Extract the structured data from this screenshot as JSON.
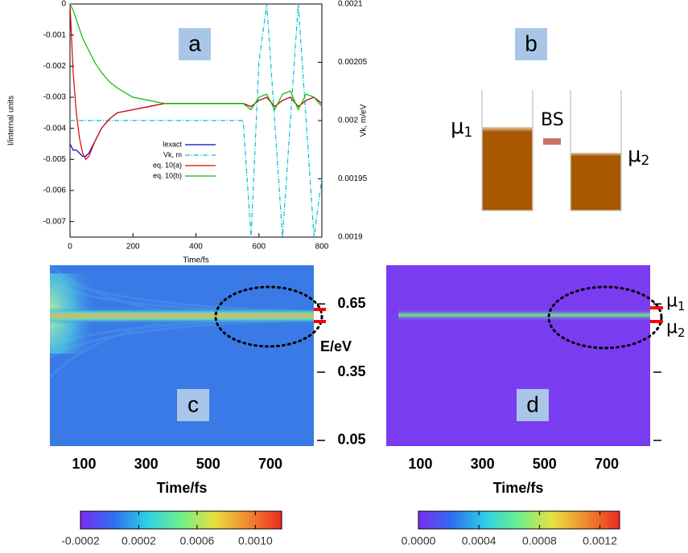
{
  "chart_data": [
    {
      "type": "line",
      "label": "a",
      "x": [
        0,
        10,
        20,
        30,
        40,
        50,
        60,
        80,
        100,
        125,
        150,
        200,
        250,
        300,
        400,
        500,
        550,
        575,
        600,
        625,
        650,
        675,
        700,
        725,
        750,
        775,
        800
      ],
      "xlim": [
        0,
        800
      ],
      "xticks": [
        0,
        200,
        400,
        600,
        800
      ],
      "ylim": [
        -0.0075,
        0
      ],
      "yticks": [
        0,
        -0.001,
        -0.002,
        -0.003,
        -0.004,
        -0.005,
        -0.006,
        -0.007
      ],
      "y2lim": [
        0.0019,
        0.0021
      ],
      "y2ticks": [
        0.0019,
        0.00195,
        0.002,
        0.00205,
        0.0021
      ],
      "x_label": "Time/fs",
      "y_label": "I/internal units",
      "y2_label": "Vk, m/eV",
      "series": [
        {
          "name": "Iexact",
          "color": "#0000c8",
          "dash": false,
          "values": [
            -0.0045,
            -0.0047,
            -0.0047,
            -0.0048,
            -0.0049,
            -0.0049,
            -0.0048,
            -0.0044,
            -0.004,
            -0.0037,
            -0.0035,
            -0.0034,
            -0.0033,
            -0.0032,
            -0.0032,
            -0.0032,
            -0.0032,
            -0.0033,
            -0.0031,
            -0.003,
            -0.0033,
            -0.0031,
            -0.003,
            -0.0033,
            -0.0031,
            -0.003,
            -0.0032
          ]
        },
        {
          "name": "Vk, m",
          "color": "#00c0d0",
          "dash": true,
          "axis": "y2",
          "values": [
            0.002,
            0.002,
            0.002,
            0.002,
            0.002,
            0.002,
            0.002,
            0.002,
            0.002,
            0.002,
            0.002,
            0.002,
            0.002,
            0.002,
            0.002,
            0.002,
            0.002,
            0.0019,
            0.00205,
            0.0021,
            0.002,
            0.0019,
            0.002,
            0.0021,
            0.002,
            0.0019,
            0.00195
          ]
        },
        {
          "name": "eq. 10(a)",
          "color": "#e00000",
          "dash": false,
          "values": [
            0,
            -0.0022,
            -0.0035,
            -0.0043,
            -0.0048,
            -0.005,
            -0.0049,
            -0.0044,
            -0.004,
            -0.0037,
            -0.0035,
            -0.0034,
            -0.0033,
            -0.0032,
            -0.0032,
            -0.0032,
            -0.0032,
            -0.0033,
            -0.0031,
            -0.003,
            -0.0033,
            -0.0031,
            -0.003,
            -0.0033,
            -0.0031,
            -0.003,
            -0.0032
          ]
        },
        {
          "name": "eq. 10(b)",
          "color": "#00c000",
          "dash": false,
          "values": [
            0,
            -0.0002,
            -0.0005,
            -0.0008,
            -0.0011,
            -0.0013,
            -0.0015,
            -0.0019,
            -0.0022,
            -0.0025,
            -0.0027,
            -0.003,
            -0.0031,
            -0.0032,
            -0.0032,
            -0.0032,
            -0.0032,
            -0.0034,
            -0.003,
            -0.0029,
            -0.0034,
            -0.0029,
            -0.0028,
            -0.0034,
            -0.0029,
            -0.003,
            -0.0033
          ]
        }
      ]
    },
    {
      "type": "heatmap",
      "label": "c",
      "xlim": [
        -10,
        840
      ],
      "xticks": [
        100,
        300,
        500,
        700
      ],
      "x_label": "Time/fs",
      "ylim": [
        0.025,
        0.82
      ],
      "yticks": [
        0.05,
        0.35,
        0.65
      ],
      "y_label": "E/eV",
      "show_ytick_labels": true,
      "colorbar": {
        "clim": [
          -0.0002,
          0.00118
        ],
        "ticks": [
          -0.0002,
          0.0002,
          0.0006,
          {
            "value": 0.001,
            "label": "0.0010"
          }
        ],
        "colors": [
          "#7a2df0",
          "#2f6ff0",
          "#2fd0e8",
          "#6ff08a",
          "#e8e040",
          "#f08a30",
          "#ee2a20"
        ]
      }
    },
    {
      "type": "heatmap",
      "label": "d",
      "xlim": [
        -10,
        840
      ],
      "xticks": [
        100,
        300,
        500,
        700
      ],
      "x_label": "Time/fs",
      "ylim": [
        0.025,
        0.82
      ],
      "yticks": [
        0.05,
        0.35,
        0.65
      ],
      "show_ytick_labels": false,
      "markers": [
        {
          "symbol": "μ",
          "subscript": "1"
        },
        {
          "symbol": "μ",
          "subscript": "2"
        }
      ],
      "colorbar": {
        "clim": [
          0,
          0.00133
        ],
        "ticks": [
          {
            "value": 0,
            "label": "0.0000"
          },
          0.0004,
          0.0008,
          0.0012
        ],
        "colors": [
          "#7a2df0",
          "#2f6ff0",
          "#2fd0e8",
          "#6ff08a",
          "#e8e040",
          "#f08a30",
          "#ee2a20"
        ]
      }
    }
  ],
  "diagram_b": {
    "label": "b",
    "left": {
      "symbol": "μ",
      "subscript": "1"
    },
    "barrier": "BS",
    "right": {
      "symbol": "μ",
      "subscript": "2"
    }
  }
}
